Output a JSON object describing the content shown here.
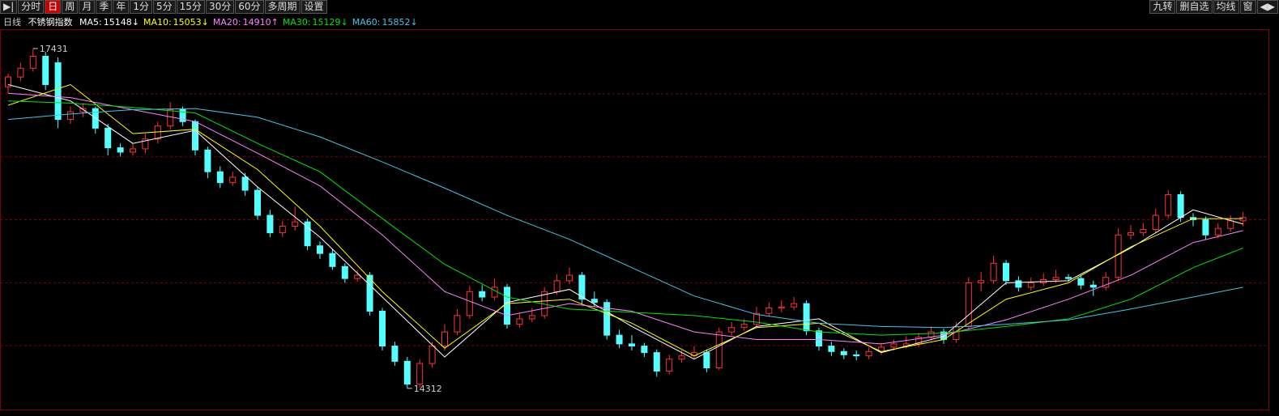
{
  "toolbar": {
    "left": [
      "分时",
      "日",
      "周",
      "月",
      "季",
      "年",
      "1分",
      "5分",
      "15分",
      "30分",
      "60分",
      "多周期",
      "设置"
    ],
    "active": 1,
    "right": [
      "九转",
      "删自选",
      "均线",
      "窗"
    ]
  },
  "chart_data": {
    "type": "candlestick",
    "period": "日线",
    "title": "不锈钢指数",
    "ylim": [
      14125,
      17594
    ],
    "up_color": "#ff3232",
    "down_color": "#54ffff",
    "grid": true,
    "candles": [
      [
        17080,
        17200,
        17020,
        17170
      ],
      [
        17170,
        17300,
        17130,
        17250
      ],
      [
        17250,
        17431,
        17220,
        17360
      ],
      [
        17360,
        17400,
        17050,
        17100
      ],
      [
        17300,
        17350,
        16700,
        16780
      ],
      [
        16780,
        16900,
        16740,
        16850
      ],
      [
        16850,
        16930,
        16800,
        16880
      ],
      [
        16880,
        16900,
        16650,
        16700
      ],
      [
        16700,
        16740,
        16450,
        16520
      ],
      [
        16520,
        16560,
        16440,
        16480
      ],
      [
        16480,
        16560,
        16450,
        16510
      ],
      [
        16510,
        16650,
        16470,
        16600
      ],
      [
        16600,
        16760,
        16560,
        16720
      ],
      [
        16720,
        16940,
        16690,
        16870
      ],
      [
        16870,
        16900,
        16720,
        16760
      ],
      [
        16760,
        16780,
        16450,
        16500
      ],
      [
        16500,
        16530,
        16240,
        16300
      ],
      [
        16300,
        16350,
        16150,
        16200
      ],
      [
        16200,
        16300,
        16170,
        16250
      ],
      [
        16250,
        16290,
        16080,
        16130
      ],
      [
        16130,
        16160,
        15860,
        15900
      ],
      [
        15900,
        15950,
        15700,
        15740
      ],
      [
        15740,
        15850,
        15700,
        15800
      ],
      [
        15800,
        15980,
        15760,
        15840
      ],
      [
        15840,
        15870,
        15580,
        15620
      ],
      [
        15620,
        15660,
        15500,
        15550
      ],
      [
        15550,
        15590,
        15400,
        15430
      ],
      [
        15430,
        15460,
        15280,
        15320
      ],
      [
        15320,
        15400,
        15290,
        15350
      ],
      [
        15350,
        15380,
        14980,
        15020
      ],
      [
        15020,
        15050,
        14660,
        14700
      ],
      [
        14700,
        14740,
        14520,
        14560
      ],
      [
        14560,
        14600,
        14312,
        14350
      ],
      [
        14350,
        14580,
        14320,
        14540
      ],
      [
        14540,
        14740,
        14500,
        14700
      ],
      [
        14700,
        14900,
        14660,
        14830
      ],
      [
        14830,
        15040,
        14800,
        14980
      ],
      [
        14980,
        15250,
        14950,
        15200
      ],
      [
        15200,
        15260,
        15110,
        15150
      ],
      [
        15150,
        15320,
        15120,
        15240
      ],
      [
        15240,
        15270,
        14860,
        14900
      ],
      [
        14900,
        15000,
        14870,
        14950
      ],
      [
        14950,
        15050,
        14920,
        14980
      ],
      [
        14980,
        15240,
        14950,
        15200
      ],
      [
        15200,
        15360,
        15170,
        15300
      ],
      [
        15300,
        15420,
        15270,
        15350
      ],
      [
        15350,
        15380,
        15090,
        15130
      ],
      [
        15130,
        15200,
        15060,
        15100
      ],
      [
        15100,
        15130,
        14760,
        14800
      ],
      [
        14800,
        14850,
        14680,
        14720
      ],
      [
        14720,
        14800,
        14660,
        14700
      ],
      [
        14700,
        14730,
        14600,
        14640
      ],
      [
        14640,
        14670,
        14420,
        14470
      ],
      [
        14470,
        14620,
        14440,
        14580
      ],
      [
        14580,
        14660,
        14550,
        14610
      ],
      [
        14610,
        14700,
        14580,
        14640
      ],
      [
        14640,
        14670,
        14460,
        14500
      ],
      [
        14500,
        14870,
        14480,
        14830
      ],
      [
        14830,
        14920,
        14800,
        14870
      ],
      [
        14870,
        14950,
        14840,
        14900
      ],
      [
        14900,
        15060,
        14870,
        15000
      ],
      [
        15000,
        15100,
        14970,
        15050
      ],
      [
        15050,
        15120,
        15010,
        15060
      ],
      [
        15060,
        15150,
        15030,
        15090
      ],
      [
        15090,
        15120,
        14800,
        14840
      ],
      [
        14840,
        14870,
        14660,
        14700
      ],
      [
        14700,
        14740,
        14610,
        14650
      ],
      [
        14650,
        14680,
        14580,
        14620
      ],
      [
        14620,
        14660,
        14570,
        14610
      ],
      [
        14610,
        14690,
        14580,
        14650
      ],
      [
        14650,
        14730,
        14620,
        14690
      ],
      [
        14690,
        14760,
        14660,
        14720
      ],
      [
        14700,
        14790,
        14680,
        14720
      ],
      [
        14720,
        14820,
        14690,
        14780
      ],
      [
        14780,
        14880,
        14750,
        14830
      ],
      [
        14830,
        14860,
        14720,
        14760
      ],
      [
        14760,
        14920,
        14730,
        14880
      ],
      [
        14880,
        15330,
        14850,
        15280
      ],
      [
        15280,
        15380,
        15200,
        15300
      ],
      [
        15300,
        15530,
        15270,
        15460
      ],
      [
        15460,
        15490,
        15260,
        15300
      ],
      [
        15300,
        15340,
        15200,
        15240
      ],
      [
        15240,
        15330,
        15210,
        15280
      ],
      [
        15280,
        15370,
        15250,
        15310
      ],
      [
        15310,
        15400,
        15280,
        15330
      ],
      [
        15330,
        15360,
        15290,
        15320
      ],
      [
        15320,
        15350,
        15220,
        15260
      ],
      [
        15260,
        15300,
        15160,
        15240
      ],
      [
        15240,
        15380,
        15210,
        15330
      ],
      [
        15330,
        15780,
        15300,
        15720
      ],
      [
        15720,
        15810,
        15680,
        15740
      ],
      [
        15740,
        15830,
        15710,
        15770
      ],
      [
        15770,
        15960,
        15740,
        15900
      ],
      [
        15900,
        16130,
        15870,
        16090
      ],
      [
        16090,
        16120,
        15840,
        15880
      ],
      [
        15880,
        15920,
        15800,
        15860
      ],
      [
        15860,
        15890,
        15680,
        15720
      ],
      [
        15720,
        15830,
        15690,
        15780
      ],
      [
        15780,
        15900,
        15750,
        15850
      ],
      [
        15850,
        15930,
        15800,
        15880
      ]
    ],
    "annotations": [
      {
        "index": 2,
        "value": 17431
      },
      {
        "index": 32,
        "value": 14312
      }
    ],
    "series": [
      {
        "name": "MA5:",
        "color": "#ffffff",
        "value": 15148,
        "value_label": "15148↓",
        "x": [
          0,
          5,
          10,
          15,
          20,
          25,
          30,
          35,
          40,
          45,
          50,
          55,
          60,
          65,
          70,
          75,
          80,
          85,
          90,
          95,
          99
        ],
        "values": [
          17100,
          16950,
          16560,
          16680,
          16160,
          15700,
          15150,
          14600,
          15100,
          15220,
          14880,
          14580,
          14880,
          14950,
          14640,
          14790,
          15280,
          15300,
          15600,
          15950,
          15820
        ]
      },
      {
        "name": "MA10:",
        "color": "#ffff00",
        "value": 15053,
        "value_label": "15053↓",
        "x": [
          0,
          5,
          10,
          15,
          20,
          25,
          30,
          35,
          40,
          45,
          50,
          55,
          60,
          65,
          70,
          75,
          80,
          85,
          90,
          95,
          99
        ],
        "values": [
          16910,
          17100,
          16650,
          16690,
          16320,
          15800,
          15200,
          14680,
          15090,
          15130,
          14910,
          14610,
          14870,
          14910,
          14650,
          14760,
          15130,
          15280,
          15610,
          15870,
          15870
        ]
      },
      {
        "name": "MA20:",
        "color": "#ff80ff",
        "value": 14910,
        "value_label": "14910↑",
        "x": [
          0,
          5,
          10,
          15,
          20,
          25,
          30,
          35,
          40,
          45,
          50,
          55,
          60,
          65,
          70,
          75,
          80,
          85,
          90,
          95,
          99
        ],
        "values": [
          17020,
          16980,
          16870,
          16760,
          16470,
          16170,
          15720,
          15200,
          14980,
          15090,
          15020,
          14830,
          14760,
          14760,
          14720,
          14800,
          14940,
          15130,
          15350,
          15650,
          15760
        ]
      },
      {
        "name": "MA30:",
        "color": "#00e600",
        "value": 15129,
        "value_label": "15129↓",
        "x": [
          0,
          5,
          10,
          15,
          20,
          25,
          30,
          35,
          40,
          45,
          50,
          55,
          60,
          65,
          70,
          75,
          80,
          85,
          90,
          95,
          99
        ],
        "values": [
          16950,
          16930,
          16890,
          16840,
          16560,
          16300,
          15870,
          15450,
          15150,
          15040,
          15010,
          14980,
          14920,
          14830,
          14800,
          14820,
          14880,
          14950,
          15130,
          15420,
          15600
        ]
      },
      {
        "name": "MA60:",
        "color": "#3fc6e8",
        "value": 15852,
        "value_label": "15852↓",
        "x": [
          0,
          5,
          10,
          15,
          20,
          25,
          30,
          35,
          40,
          45,
          50,
          55,
          60,
          65,
          70,
          75,
          80,
          85,
          90,
          95,
          99
        ],
        "values": [
          16780,
          16830,
          16870,
          16880,
          16800,
          16620,
          16390,
          16150,
          15900,
          15680,
          15420,
          15160,
          14990,
          14910,
          14880,
          14870,
          14900,
          14940,
          15040,
          15150,
          15240
        ]
      }
    ]
  }
}
